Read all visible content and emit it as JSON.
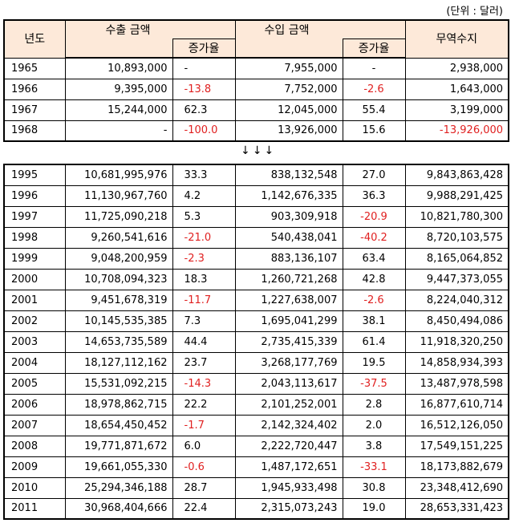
{
  "unit_label": "(단위 : 달러)",
  "arrows": "↓↓↓",
  "headers": {
    "year": "년도",
    "export": "수출 금액",
    "export_growth": "증가율",
    "import": "수입 금액",
    "import_growth": "증가율",
    "balance": "무역수지"
  },
  "table1": [
    {
      "year": "1965",
      "export": "10,893,000",
      "eg": "-",
      "import": "7,955,000",
      "ig": "-",
      "balance": "2,938,000"
    },
    {
      "year": "1966",
      "export": "9,395,000",
      "eg": "-13.8",
      "import": "7,752,000",
      "ig": "-2.6",
      "balance": "1,643,000"
    },
    {
      "year": "1967",
      "export": "15,244,000",
      "eg": "62.3",
      "import": "12,045,000",
      "ig": "55.4",
      "balance": "3,199,000"
    },
    {
      "year": "1968",
      "export": "-",
      "eg": "-100.0",
      "import": "13,926,000",
      "ig": "15.6",
      "balance": "-13,926,000"
    }
  ],
  "table2": [
    {
      "year": "1995",
      "export": "10,681,995,976",
      "eg": "33.3",
      "import": "838,132,548",
      "ig": "27.0",
      "balance": "9,843,863,428"
    },
    {
      "year": "1996",
      "export": "11,130,967,760",
      "eg": "4.2",
      "import": "1,142,676,335",
      "ig": "36.3",
      "balance": "9,988,291,425"
    },
    {
      "year": "1997",
      "export": "11,725,090,218",
      "eg": "5.3",
      "import": "903,309,918",
      "ig": "-20.9",
      "balance": "10,821,780,300"
    },
    {
      "year": "1998",
      "export": "9,260,541,616",
      "eg": "-21.0",
      "import": "540,438,041",
      "ig": "-40.2",
      "balance": "8,720,103,575"
    },
    {
      "year": "1999",
      "export": "9,048,200,959",
      "eg": "-2.3",
      "import": "883,136,107",
      "ig": "63.4",
      "balance": "8,165,064,852"
    },
    {
      "year": "2000",
      "export": "10,708,094,323",
      "eg": "18.3",
      "import": "1,260,721,268",
      "ig": "42.8",
      "balance": "9,447,373,055"
    },
    {
      "year": "2001",
      "export": "9,451,678,319",
      "eg": "-11.7",
      "import": "1,227,638,007",
      "ig": "-2.6",
      "balance": "8,224,040,312"
    },
    {
      "year": "2002",
      "export": "10,145,535,385",
      "eg": "7.3",
      "import": "1,695,041,299",
      "ig": "38.1",
      "balance": "8,450,494,086"
    },
    {
      "year": "2003",
      "export": "14,653,735,589",
      "eg": "44.4",
      "import": "2,735,415,339",
      "ig": "61.4",
      "balance": "11,918,320,250"
    },
    {
      "year": "2004",
      "export": "18,127,112,162",
      "eg": "23.7",
      "import": "3,268,177,769",
      "ig": "19.5",
      "balance": "14,858,934,393"
    },
    {
      "year": "2005",
      "export": "15,531,092,215",
      "eg": "-14.3",
      "import": "2,043,113,617",
      "ig": "-37.5",
      "balance": "13,487,978,598"
    },
    {
      "year": "2006",
      "export": "18,978,862,715",
      "eg": "22.2",
      "import": "2,101,252,001",
      "ig": "2.8",
      "balance": "16,877,610,714"
    },
    {
      "year": "2007",
      "export": "18,654,450,452",
      "eg": "-1.7",
      "import": "2,142,324,402",
      "ig": "2.0",
      "balance": "16,512,126,050"
    },
    {
      "year": "2008",
      "export": "19,771,871,672",
      "eg": "6.0",
      "import": "2,222,720,447",
      "ig": "3.8",
      "balance": "17,549,151,225"
    },
    {
      "year": "2009",
      "export": "19,661,055,330",
      "eg": "-0.6",
      "import": "1,487,172,651",
      "ig": "-33.1",
      "balance": "18,173,882,679"
    },
    {
      "year": "2010",
      "export": "25,294,346,188",
      "eg": "28.7",
      "import": "1,945,933,498",
      "ig": "30.8",
      "balance": "23,348,412,690"
    },
    {
      "year": "2011",
      "export": "30,968,404,666",
      "eg": "22.4",
      "import": "2,315,073,243",
      "ig": "19.0",
      "balance": "28,653,331,423"
    }
  ],
  "colors": {
    "negative": "#e02020",
    "header_bg": "#fde9d9"
  }
}
